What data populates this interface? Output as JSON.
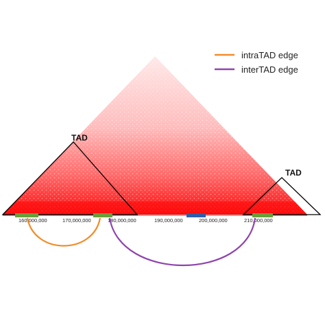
{
  "legend": {
    "items": [
      {
        "label": "intraTAD edge",
        "color": "#F28C28"
      },
      {
        "label": "interTAD edge",
        "color": "#8E44AD"
      }
    ]
  },
  "tad_labels": {
    "left": "TAD",
    "right": "TAD"
  },
  "genome_axis": {
    "ticks": [
      "160,000,000",
      "170,000,000",
      "180,000,000",
      "190,000,000",
      "200,000,000",
      "210,000,000"
    ]
  },
  "colors": {
    "heatmap": "#FF1A1A",
    "tad_outline": "#000000",
    "segment_green": "#6A9E3A",
    "segment_blue": "#2F5DA8",
    "intra_edge": "#F28C28",
    "inter_edge": "#8E44AD"
  }
}
